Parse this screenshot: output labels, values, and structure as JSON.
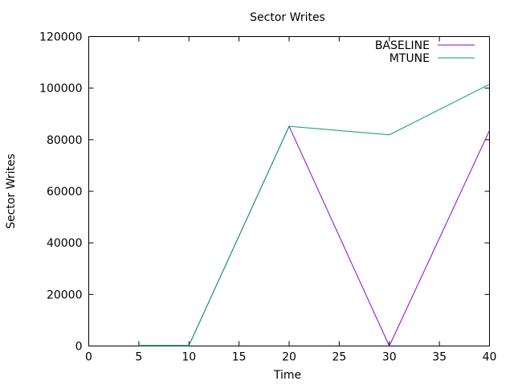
{
  "chart_data": {
    "type": "line",
    "title": "Sector Writes",
    "xlabel": "Time",
    "ylabel": "Sector Writes",
    "xlim": [
      0,
      40
    ],
    "ylim": [
      0,
      120000
    ],
    "xticks": [
      0,
      5,
      10,
      15,
      20,
      25,
      30,
      35,
      40
    ],
    "yticks": [
      0,
      20000,
      40000,
      60000,
      80000,
      100000,
      120000
    ],
    "grid": false,
    "legend_position": "top-right",
    "series": [
      {
        "name": "BASELINE",
        "color": "#9400d3",
        "x": [
          5,
          10,
          20,
          30,
          40
        ],
        "y": [
          200,
          200,
          85200,
          0,
          83600
        ]
      },
      {
        "name": "MTUNE",
        "color": "#009e73",
        "x": [
          5,
          10,
          20,
          30,
          40
        ],
        "y": [
          200,
          200,
          85200,
          81900,
          101500
        ]
      }
    ]
  }
}
